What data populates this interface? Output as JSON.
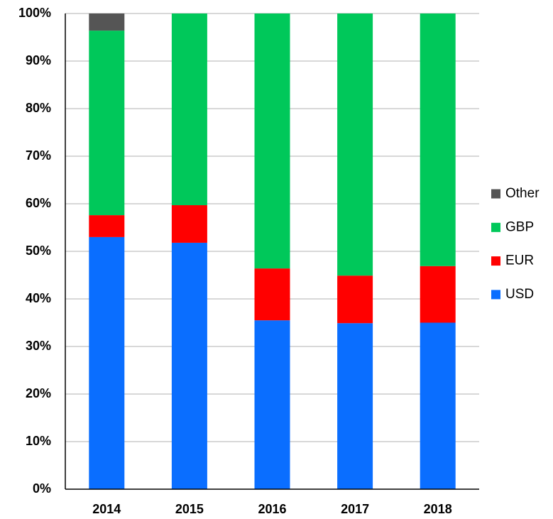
{
  "chart_data": {
    "type": "stacked_bar",
    "categories": [
      "2014",
      "2015",
      "2016",
      "2017",
      "2018"
    ],
    "series": [
      {
        "name": "USD",
        "color": "#0a6eff",
        "values": [
          53.0,
          51.8,
          35.5,
          34.9,
          35.0
        ]
      },
      {
        "name": "EUR",
        "color": "#ff0000",
        "values": [
          4.6,
          7.9,
          10.9,
          10.0,
          11.9
        ]
      },
      {
        "name": "GBP",
        "color": "#00c85a",
        "values": [
          38.8,
          40.3,
          53.6,
          55.1,
          53.1
        ]
      },
      {
        "name": "Other",
        "color": "#555555",
        "values": [
          3.6,
          0,
          0,
          0,
          0
        ]
      }
    ],
    "ylim": [
      0,
      100
    ],
    "yticks": [
      {
        "value": 0,
        "label": "0%"
      },
      {
        "value": 10,
        "label": "10%"
      },
      {
        "value": 20,
        "label": "20%"
      },
      {
        "value": 30,
        "label": "30%"
      },
      {
        "value": 40,
        "label": "40%"
      },
      {
        "value": 50,
        "label": "50%"
      },
      {
        "value": 60,
        "label": "60%"
      },
      {
        "value": 70,
        "label": "70%"
      },
      {
        "value": 80,
        "label": "80%"
      },
      {
        "value": 90,
        "label": "90%"
      },
      {
        "value": 100,
        "label": "100%"
      }
    ],
    "grid": true,
    "legend": "right"
  }
}
